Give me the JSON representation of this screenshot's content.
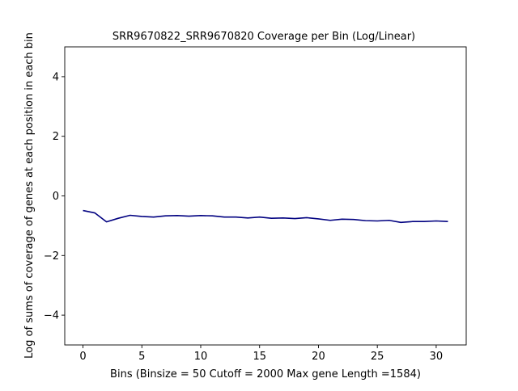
{
  "chart_data": {
    "type": "line",
    "title": "SRR9670822_SRR9670820 Coverage per Bin (Log/Linear)",
    "xlabel": "Bins  (Binsize = 50 Cutoff = 2000 Max gene Length =1584)",
    "ylabel": "Log of sums of coverage of genes at each position in each bin",
    "xlim": [
      -1.55,
      32.55
    ],
    "ylim": [
      -5,
      5
    ],
    "xticks": [
      0,
      5,
      10,
      15,
      20,
      25,
      30
    ],
    "yticks": [
      -4,
      -2,
      0,
      2,
      4
    ],
    "grid": false,
    "series": [
      {
        "color": "#000080",
        "x": [
          0,
          1,
          2,
          3,
          4,
          5,
          6,
          7,
          8,
          9,
          10,
          11,
          12,
          13,
          14,
          15,
          16,
          17,
          18,
          19,
          20,
          21,
          22,
          23,
          24,
          25,
          26,
          27,
          28,
          29,
          30,
          31
        ],
        "y": [
          -0.49,
          -0.57,
          -0.87,
          -0.75,
          -0.65,
          -0.69,
          -0.71,
          -0.67,
          -0.66,
          -0.68,
          -0.66,
          -0.67,
          -0.71,
          -0.71,
          -0.74,
          -0.71,
          -0.75,
          -0.74,
          -0.76,
          -0.73,
          -0.77,
          -0.82,
          -0.78,
          -0.79,
          -0.83,
          -0.84,
          -0.82,
          -0.89,
          -0.86,
          -0.86,
          -0.84,
          -0.86
        ]
      }
    ]
  }
}
